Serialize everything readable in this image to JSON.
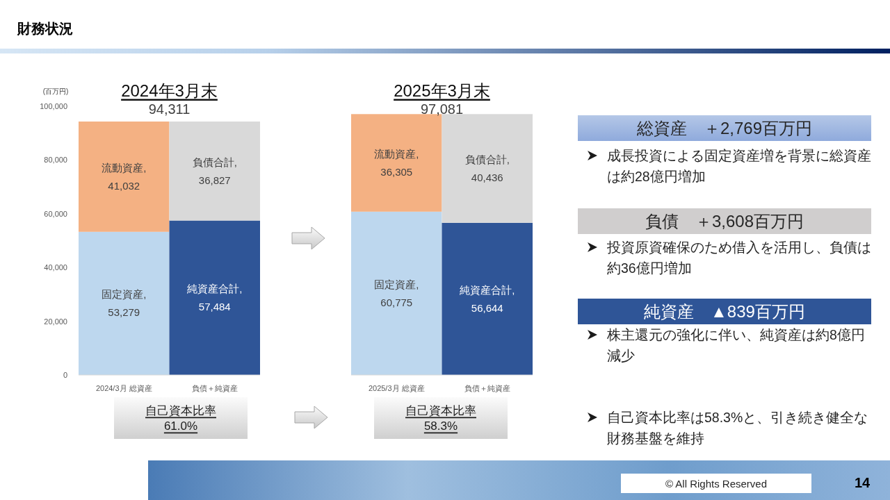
{
  "chart_data": [
    {
      "type": "other",
      "title": "財務状況"
    },
    {
      "type": "bar",
      "stacked": true,
      "title": "2024年3月末",
      "subtitle": "94,311",
      "ylabel": "(百万円)",
      "categories": [
        "2024/3月 総資産",
        "負債＋純資産"
      ],
      "series": [
        {
          "name": "固定資産,",
          "color": "#bdd7ee",
          "values": [
            53279,
            null
          ],
          "value_labels": [
            "53,279",
            null
          ]
        },
        {
          "name": "流動資産,",
          "color": "#f4b183",
          "values": [
            41032,
            null
          ],
          "value_labels": [
            "41,032",
            null
          ]
        },
        {
          "name": "純資産合計,",
          "color": "#2f5597",
          "values": [
            null,
            57484
          ],
          "value_labels": [
            null,
            "57,484"
          ]
        },
        {
          "name": "負債合計,",
          "color": "#d9d9d9",
          "values": [
            null,
            36827
          ],
          "value_labels": [
            null,
            "36,827"
          ]
        }
      ],
      "ylim": [
        0,
        100000
      ],
      "yticks": [
        0,
        {
          "value": 20000,
          "label": "20,000"
        },
        {
          "value": 40000,
          "label": "40,000"
        },
        {
          "value": 60000,
          "label": "60,000"
        },
        {
          "value": 80000,
          "label": "80,000"
        },
        {
          "value": 100000,
          "label": "100,000"
        }
      ],
      "annotations": [
        "自己資本比率\n61.0%"
      ]
    },
    {
      "type": "bar",
      "stacked": true,
      "title": "2025年3月末",
      "subtitle": "97,081",
      "categories": [
        "2025/3月 総資産",
        "負債＋純資産"
      ],
      "series": [
        {
          "name": "固定資産,",
          "color": "#bdd7ee",
          "values": [
            60775,
            null
          ],
          "value_labels": [
            "60,775",
            null
          ]
        },
        {
          "name": "流動資産,",
          "color": "#f4b183",
          "values": [
            36305,
            null
          ],
          "value_labels": [
            "36,305",
            null
          ]
        },
        {
          "name": "純資産合計,",
          "color": "#2f5597",
          "values": [
            null,
            56644
          ],
          "value_labels": [
            null,
            "56,644"
          ]
        },
        {
          "name": "負債合計,",
          "color": "#d9d9d9",
          "values": [
            null,
            40436
          ],
          "value_labels": [
            null,
            "40,436"
          ]
        }
      ],
      "ylim": [
        0,
        100000
      ],
      "tick_labels": "x",
      "annotations": [
        "自己資本比率\n58.3%"
      ]
    },
    {
      "type": "other",
      "annotations": [
        "総資産　＋2,769百万円",
        "成長投資による固定資産増を背景に総資産は約28億円増加",
        "負債　＋3,608百万円",
        "投資原資確保のため借入を活用し、負債は約36億円増加",
        "純資産　▲839百万円",
        "株主還元の強化に伴い、純資産は約8億円減少",
        "自己資本比率は58.3%と、引き続き健全な財務基盤を維持"
      ]
    },
    {
      "type": "other",
      "annotations": [
        "© All Rights Reserved",
        "14"
      ]
    }
  ]
}
